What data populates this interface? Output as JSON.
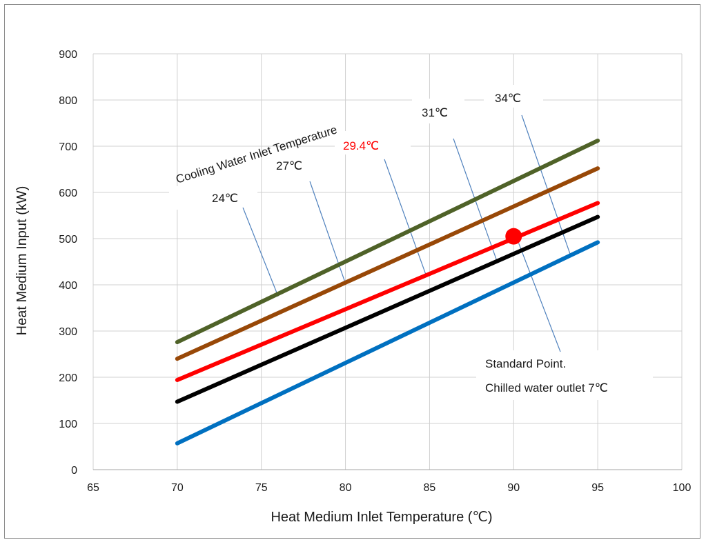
{
  "chart_data": {
    "type": "line",
    "xlabel": "Heat Medium  Inlet Temperature  (℃)",
    "ylabel": "Heat Medium Input (kW)",
    "xlim": [
      65,
      100
    ],
    "ylim": [
      0,
      900
    ],
    "xticks": [
      65,
      70,
      75,
      80,
      85,
      90,
      95,
      100
    ],
    "yticks": [
      0,
      100,
      200,
      300,
      400,
      500,
      600,
      700,
      800,
      900
    ],
    "grid": true,
    "legend": "none",
    "series": [
      {
        "name": "24℃",
        "x": [
          70,
          95
        ],
        "y": [
          276,
          712
        ],
        "color": "#4f6228"
      },
      {
        "name": "27℃",
        "x": [
          70,
          95
        ],
        "y": [
          240,
          652
        ],
        "color": "#984807"
      },
      {
        "name": "29.4℃",
        "x": [
          70,
          95
        ],
        "y": [
          194,
          577
        ],
        "color": "#ff0000"
      },
      {
        "name": "31℃",
        "x": [
          70,
          95
        ],
        "y": [
          147,
          547
        ],
        "color": "#000000"
      },
      {
        "name": "34℃",
        "x": [
          70,
          95
        ],
        "y": [
          57,
          492
        ],
        "color": "#0070c0"
      }
    ],
    "marker": {
      "x": 90,
      "y": 505,
      "color": "#ff0000"
    },
    "annotations": {
      "group_label": "Cooling Water Inlet Temperature",
      "labels": [
        {
          "text": "24℃",
          "color": "#1a1a1a",
          "target": [
            76,
            375
          ]
        },
        {
          "text": "27℃",
          "color": "#1a1a1a",
          "target": [
            80,
            403
          ]
        },
        {
          "text": "29.4℃",
          "color": "#ff0000",
          "target": [
            84.8,
            420
          ]
        },
        {
          "text": "31℃",
          "color": "#1a1a1a",
          "target": [
            89,
            452
          ]
        },
        {
          "text": "34℃",
          "color": "#1a1a1a",
          "target": [
            93.4,
            462
          ]
        }
      ],
      "standard_point_line1": "Standard  Point.",
      "standard_point_line2": "Chilled water outlet 7℃",
      "standard_point_target": [
        90.3,
        490
      ]
    }
  }
}
